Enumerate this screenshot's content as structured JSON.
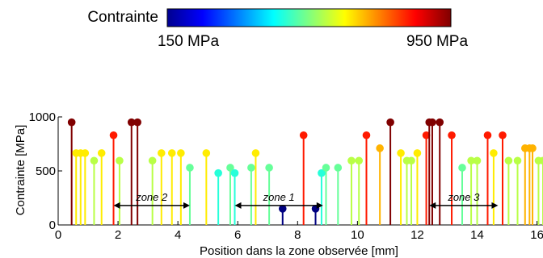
{
  "colorbar": {
    "title": "Contrainte",
    "min_label": "150 MPa",
    "max_label": "950 MPa",
    "min": 150,
    "max": 950
  },
  "chart_data": {
    "type": "scatter",
    "style": "stem",
    "xlabel": "Position dans la zone observée [mm]",
    "ylabel": "Contrainte [MPa]",
    "xlim": [
      0,
      16.2
    ],
    "ylim": [
      0,
      1000
    ],
    "xticks": [
      0,
      2,
      4,
      6,
      8,
      10,
      12,
      14,
      16
    ],
    "yticks": [
      0,
      500,
      1000
    ],
    "x": [
      0.45,
      0.6,
      0.75,
      0.9,
      1.2,
      1.45,
      1.85,
      2.05,
      2.45,
      2.65,
      3.15,
      3.45,
      3.8,
      4.1,
      4.4,
      4.95,
      5.35,
      5.75,
      5.9,
      6.45,
      6.6,
      7.05,
      7.5,
      8.2,
      8.6,
      8.8,
      8.95,
      9.35,
      9.8,
      10.05,
      10.3,
      10.75,
      11.1,
      11.45,
      11.65,
      11.8,
      12.0,
      12.3,
      12.4,
      12.5,
      12.75,
      13.15,
      13.5,
      13.8,
      14.0,
      14.35,
      14.55,
      14.85,
      15.05,
      15.35,
      15.6,
      15.75,
      15.85,
      16.05,
      16.2
    ],
    "y": [
      950,
      665,
      665,
      665,
      595,
      665,
      830,
      595,
      950,
      950,
      595,
      665,
      665,
      665,
      530,
      665,
      480,
      530,
      480,
      530,
      665,
      530,
      150,
      830,
      150,
      480,
      530,
      530,
      595,
      595,
      830,
      710,
      950,
      665,
      595,
      595,
      665,
      830,
      950,
      950,
      950,
      830,
      530,
      595,
      595,
      830,
      665,
      830,
      595,
      595,
      710,
      710,
      710,
      595,
      595
    ],
    "annotations": [
      {
        "text": "zone 2",
        "x_start": 1.85,
        "x_end": 4.4,
        "y": 180
      },
      {
        "text": "zone 1",
        "x_start": 5.9,
        "x_end": 8.85,
        "y": 180
      },
      {
        "text": "zone 3",
        "x_start": 12.4,
        "x_end": 14.7,
        "y": 180
      }
    ],
    "colormap": "jet"
  }
}
